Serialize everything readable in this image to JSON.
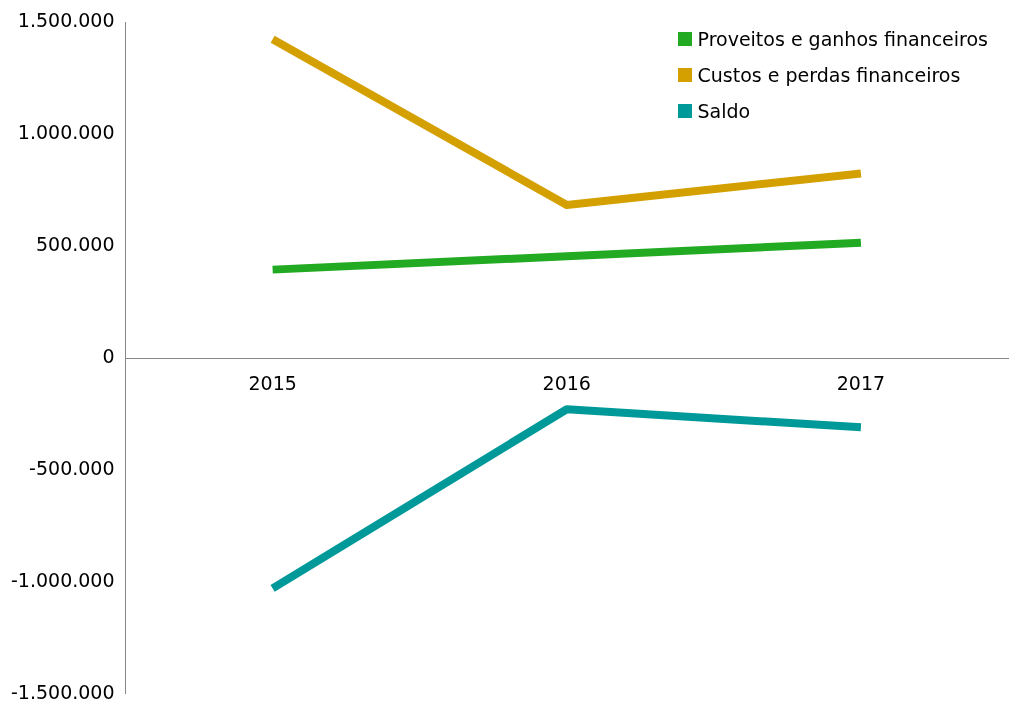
{
  "chart_data": {
    "type": "line",
    "categories": [
      "2015",
      "2016",
      "2017"
    ],
    "series": [
      {
        "name": "Proveitos e ganhos financeiros",
        "color": "#22aa22",
        "values": [
          395000,
          455000,
          515000
        ]
      },
      {
        "name": "Custos e perdas financeiros",
        "color": "#d4a000",
        "values": [
          1425000,
          684000,
          825000
        ]
      },
      {
        "name": "Saldo",
        "color": "#009999",
        "values": [
          -1030000,
          -229000,
          -310000
        ]
      }
    ],
    "ylim": [
      -1500000,
      1500000
    ],
    "yticks": [
      {
        "value": -1500000,
        "label": "-1.500.000"
      },
      {
        "value": -1000000,
        "label": "-1.000.000"
      },
      {
        "value": -500000,
        "label": "-500.000"
      },
      {
        "value": 0,
        "label": "0"
      },
      {
        "value": 500000,
        "label": "500.000"
      },
      {
        "value": 1000000,
        "label": "1.000.000"
      },
      {
        "value": 1500000,
        "label": "1.500.000"
      }
    ],
    "grid": false,
    "legend": "top right",
    "marker": "none",
    "line_style": "solid"
  }
}
